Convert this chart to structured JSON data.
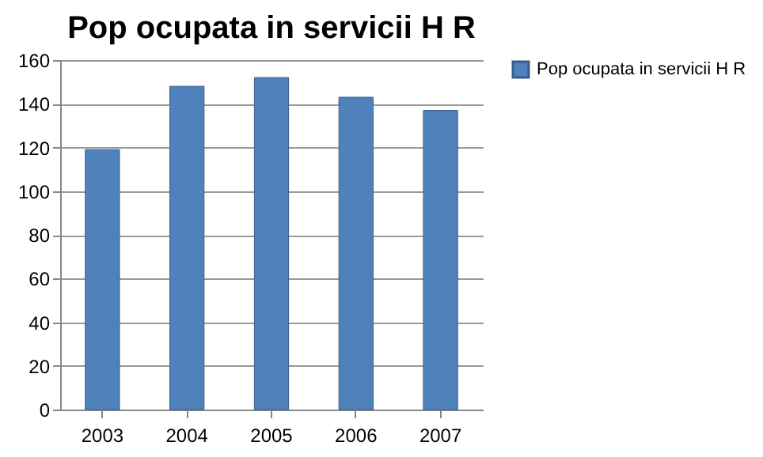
{
  "chart_data": {
    "type": "bar",
    "title": "Pop ocupata in servicii H R",
    "categories": [
      "2003",
      "2004",
      "2005",
      "2006",
      "2007"
    ],
    "series": [
      {
        "name": "Pop ocupata in servicii H R",
        "color": "#4f81bd",
        "values": [
          119,
          148,
          152,
          143,
          137
        ]
      }
    ],
    "ylim": [
      0,
      160
    ],
    "yticks": [
      0,
      20,
      40,
      60,
      80,
      100,
      120,
      140,
      160
    ],
    "grid": "y",
    "legend": "right"
  }
}
